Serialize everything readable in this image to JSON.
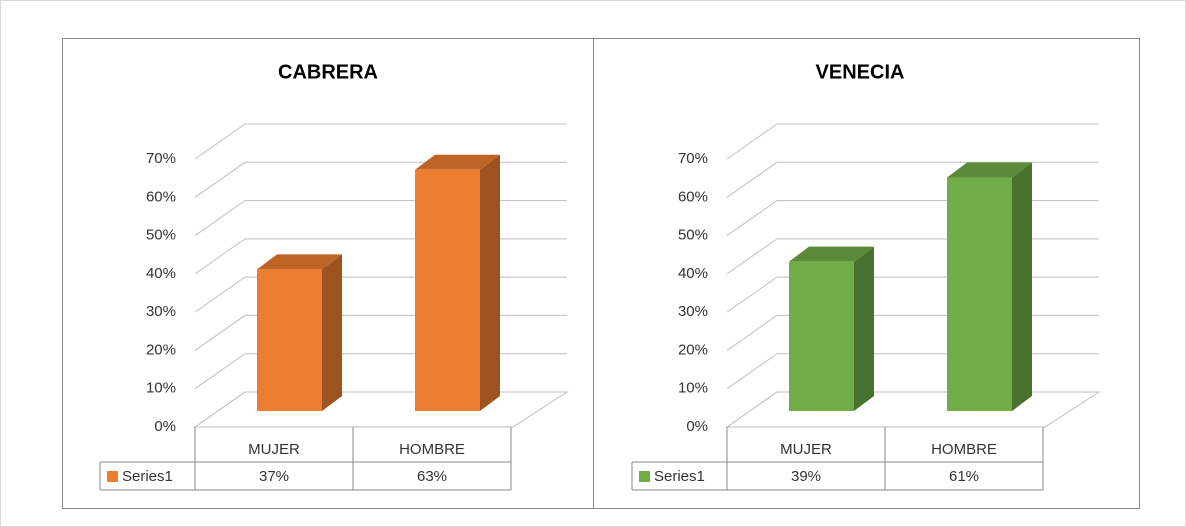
{
  "chart_data": [
    {
      "type": "bar3d",
      "title": "CABRERA",
      "categories": [
        "MUJER",
        "HOMBRE"
      ],
      "series": [
        {
          "name": "Series1",
          "color": "#ed7d31",
          "values": [
            37,
            63
          ],
          "value_labels": [
            "37%",
            "63%"
          ]
        }
      ],
      "ylim": [
        0,
        70
      ],
      "yticks": [
        {
          "value": 0,
          "label": "0%"
        },
        {
          "value": 10,
          "label": "10%"
        },
        {
          "value": 20,
          "label": "20%"
        },
        {
          "value": 30,
          "label": "30%"
        },
        {
          "value": 40,
          "label": "40%"
        },
        {
          "value": 50,
          "label": "50%"
        },
        {
          "value": 60,
          "label": "60%"
        },
        {
          "value": 70,
          "label": "70%"
        }
      ],
      "grid": true
    },
    {
      "type": "bar3d",
      "title": "VENECIA",
      "categories": [
        "MUJER",
        "HOMBRE"
      ],
      "series": [
        {
          "name": "Series1",
          "color": "#70ad47",
          "values": [
            39,
            61
          ],
          "value_labels": [
            "39%",
            "61%"
          ]
        }
      ],
      "ylim": [
        0,
        70
      ],
      "yticks": [
        {
          "value": 0,
          "label": "0%"
        },
        {
          "value": 10,
          "label": "10%"
        },
        {
          "value": 20,
          "label": "20%"
        },
        {
          "value": 30,
          "label": "30%"
        },
        {
          "value": 40,
          "label": "40%"
        },
        {
          "value": 50,
          "label": "50%"
        },
        {
          "value": 60,
          "label": "60%"
        },
        {
          "value": 70,
          "label": "70%"
        }
      ],
      "grid": true
    }
  ]
}
